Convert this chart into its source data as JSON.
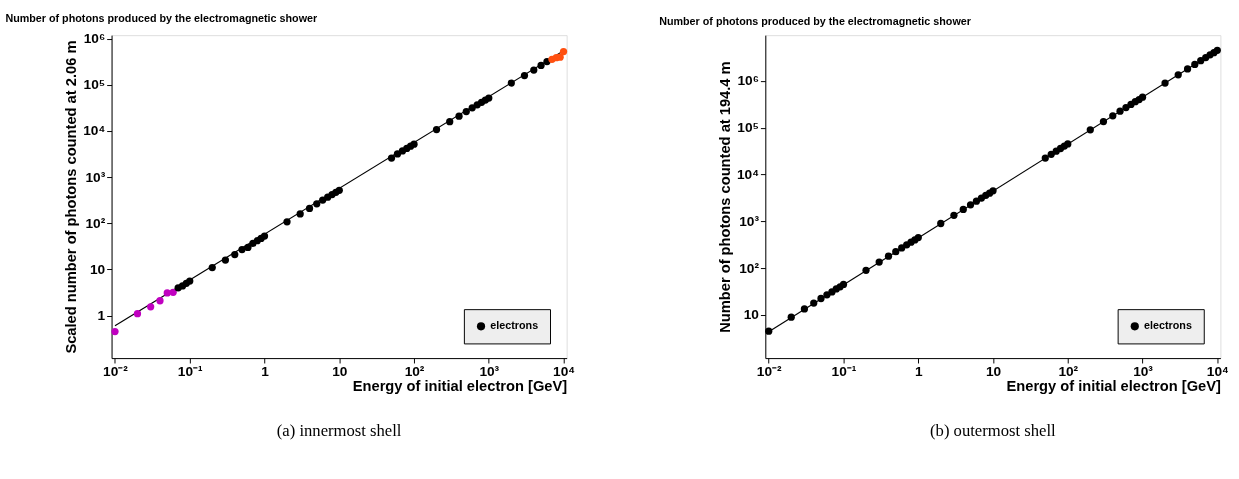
{
  "chart_data": [
    {
      "type": "scatter",
      "title": "Number of photons produced by the electromagnetic shower",
      "xlabel": "Energy of initial electron [GeV]",
      "ylabel": "Scaled number of photons counted at 2.06 m",
      "log": "xy",
      "grid": false,
      "legend": "bottom right",
      "marker": "circle",
      "xlim": [
        0.009,
        11000
      ],
      "ylim": [
        0.12,
        1200000
      ],
      "xticks": [
        {
          "value": 0.01,
          "label": "10⁻²"
        },
        {
          "value": 0.1,
          "label": "10⁻¹"
        },
        1,
        10,
        {
          "value": 100,
          "label": "10²"
        },
        {
          "value": 1000,
          "label": "10³"
        },
        {
          "value": 10000,
          "label": "10⁴"
        }
      ],
      "yticks": [
        1,
        10,
        {
          "value": 100,
          "label": "10²"
        },
        {
          "value": 1000,
          "label": "10³"
        },
        {
          "value": 10000,
          "label": "10⁴"
        },
        {
          "value": 100000,
          "label": "10⁵"
        },
        {
          "value": 1000000,
          "label": "10⁶"
        }
      ],
      "annotations": [
        "(a) innermost shell"
      ],
      "series": [
        {
          "type": "line",
          "color": "#000000",
          "line_style": "solid",
          "marker": "none",
          "x": [
            0.01,
            10000
          ],
          "values": [
            0.6,
            550000
          ]
        },
        {
          "color": "#c000c0",
          "x": [
            0.01,
            0.02,
            0.03,
            0.04,
            0.05,
            0.06
          ],
          "values": [
            0.45,
            1.1,
            1.55,
            2.1,
            3.1,
            3.2
          ]
        },
        {
          "name": "electrons",
          "color": "#000000",
          "x": [
            0.07,
            0.08,
            0.09,
            0.1,
            0.2,
            0.3,
            0.4,
            0.5,
            0.6,
            0.7,
            0.8,
            0.9,
            1,
            2,
            3,
            4,
            5,
            6,
            7,
            8,
            9,
            10,
            50,
            60,
            70,
            80,
            90,
            100,
            200,
            300,
            400,
            500,
            600,
            700,
            800,
            900,
            1000,
            2000,
            3000,
            4000,
            5000,
            6000
          ],
          "values": [
            4.0,
            4.4,
            5.0,
            5.6,
            11,
            16,
            21,
            27,
            30,
            37,
            42,
            47,
            53,
            108,
            160,
            210,
            265,
            320,
            370,
            420,
            470,
            520,
            2600,
            3200,
            3700,
            4200,
            4700,
            5200,
            10800,
            16000,
            21000,
            26500,
            32000,
            37000,
            42000,
            47000,
            52000,
            110000,
            160000,
            210000,
            265000,
            320000
          ]
        },
        {
          "color": "#ff5010",
          "x": [
            7000,
            8000,
            9000,
            10000
          ],
          "values": [
            360000,
            390000,
            400000,
            530000
          ]
        }
      ]
    },
    {
      "type": "scatter",
      "title": "Number of photons produced by the electromagnetic shower",
      "xlabel": "Energy of initial electron [GeV]",
      "ylabel": "Number of photons counted at 194.4 m",
      "log": "xy",
      "grid": false,
      "legend": "bottom right",
      "marker": "circle",
      "xlim": [
        0.009,
        11000
      ],
      "ylim": [
        1.2,
        9500000
      ],
      "xticks": [
        {
          "value": 0.01,
          "label": "10⁻²"
        },
        {
          "value": 0.1,
          "label": "10⁻¹"
        },
        1,
        10,
        {
          "value": 100,
          "label": "10²"
        },
        {
          "value": 1000,
          "label": "10³"
        },
        {
          "value": 10000,
          "label": "10⁴"
        }
      ],
      "yticks": [
        10,
        {
          "value": 100,
          "label": "10²"
        },
        {
          "value": 1000,
          "label": "10³"
        },
        {
          "value": 10000,
          "label": "10⁴"
        },
        {
          "value": 100000,
          "label": "10⁵"
        },
        {
          "value": 1000000,
          "label": "10⁶"
        }
      ],
      "annotations": [
        "(b) outermost shell"
      ],
      "series": [
        {
          "type": "line",
          "color": "#000000",
          "line_style": "solid",
          "marker": "none",
          "x": [
            0.01,
            10000
          ],
          "values": [
            4.4,
            4500000
          ]
        },
        {
          "name": "electrons",
          "color": "#000000",
          "x": [
            0.01,
            0.02,
            0.03,
            0.04,
            0.05,
            0.06,
            0.07,
            0.08,
            0.09,
            0.1,
            0.2,
            0.3,
            0.4,
            0.5,
            0.6,
            0.7,
            0.8,
            0.9,
            1,
            2,
            3,
            4,
            5,
            6,
            7,
            8,
            9,
            10,
            50,
            60,
            70,
            80,
            90,
            100,
            200,
            300,
            400,
            500,
            600,
            700,
            800,
            900,
            1000,
            2000,
            3000,
            4000,
            5000,
            6000,
            7000,
            8000,
            9000,
            10000
          ],
          "values": [
            4.5,
            9,
            13.5,
            18,
            22.5,
            27,
            31,
            36,
            40,
            45,
            90,
            135,
            180,
            225,
            270,
            315,
            360,
            400,
            450,
            900,
            1350,
            1800,
            2250,
            2700,
            3150,
            3600,
            4000,
            4500,
            22500,
            27000,
            31500,
            36000,
            40500,
            45000,
            90000,
            135000,
            180000,
            225000,
            270000,
            315000,
            360000,
            400000,
            450000,
            900000,
            1350000,
            1800000,
            2250000,
            2700000,
            3150000,
            3600000,
            4000000,
            4500000
          ]
        }
      ]
    }
  ]
}
